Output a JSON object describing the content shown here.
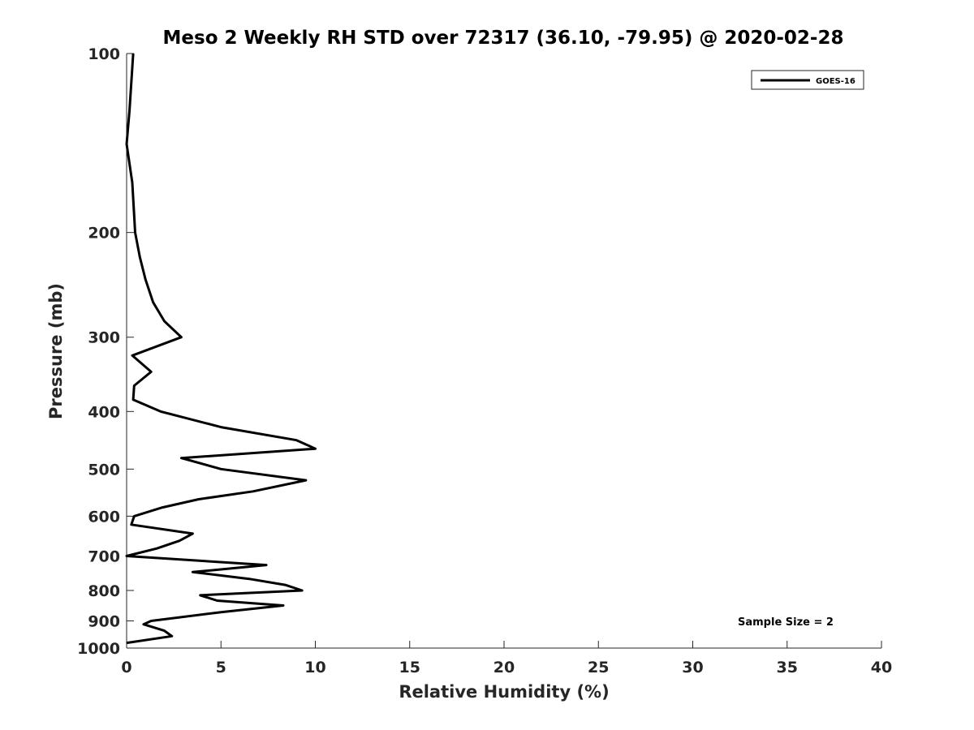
{
  "chart_data": {
    "type": "line",
    "title": "Meso 2 Weekly RH STD over 72317 (36.10, -79.95) @ 2020-02-28",
    "xlabel": "Relative Humidity (%)",
    "ylabel": "Pressure (mb)",
    "xlim": [
      0,
      40
    ],
    "ylim": [
      100,
      1000
    ],
    "y_scale": "log",
    "y_direction": "reversed",
    "grid": false,
    "legend_position": "top-right",
    "x_ticks": [
      "0",
      "5",
      "10",
      "15",
      "20",
      "25",
      "30",
      "35",
      "40"
    ],
    "y_ticks": [
      "100",
      "200",
      "300",
      "400",
      "500",
      "600",
      "700",
      "800",
      "900",
      "1000"
    ],
    "series": [
      {
        "name": "GOES-16",
        "color": "#000000",
        "points": [
          [
            0.35,
            100
          ],
          [
            0.15,
            125
          ],
          [
            0.0,
            142
          ],
          [
            0.3,
            165
          ],
          [
            0.45,
            200
          ],
          [
            0.7,
            220
          ],
          [
            1.0,
            240
          ],
          [
            1.4,
            262
          ],
          [
            2.0,
            282
          ],
          [
            2.9,
            300
          ],
          [
            0.3,
            322
          ],
          [
            1.3,
            343
          ],
          [
            0.4,
            362
          ],
          [
            0.35,
            382
          ],
          [
            1.8,
            400
          ],
          [
            5.0,
            425
          ],
          [
            9.0,
            447
          ],
          [
            10.0,
            462
          ],
          [
            2.9,
            479
          ],
          [
            5.0,
            500
          ],
          [
            9.5,
            522
          ],
          [
            6.7,
            545
          ],
          [
            3.8,
            562
          ],
          [
            1.9,
            580
          ],
          [
            0.4,
            600
          ],
          [
            0.25,
            620
          ],
          [
            3.5,
            642
          ],
          [
            2.8,
            660
          ],
          [
            1.6,
            680
          ],
          [
            0.0,
            700
          ],
          [
            7.4,
            725
          ],
          [
            3.5,
            745
          ],
          [
            6.5,
            765
          ],
          [
            8.4,
            783
          ],
          [
            9.3,
            800
          ],
          [
            3.9,
            815
          ],
          [
            4.8,
            832
          ],
          [
            8.3,
            848
          ],
          [
            5.0,
            870
          ],
          [
            1.3,
            900
          ],
          [
            0.9,
            912
          ],
          [
            2.0,
            935
          ],
          [
            2.4,
            955
          ],
          [
            0.0,
            980
          ]
        ]
      }
    ],
    "annotation": "Sample Size = 2"
  }
}
